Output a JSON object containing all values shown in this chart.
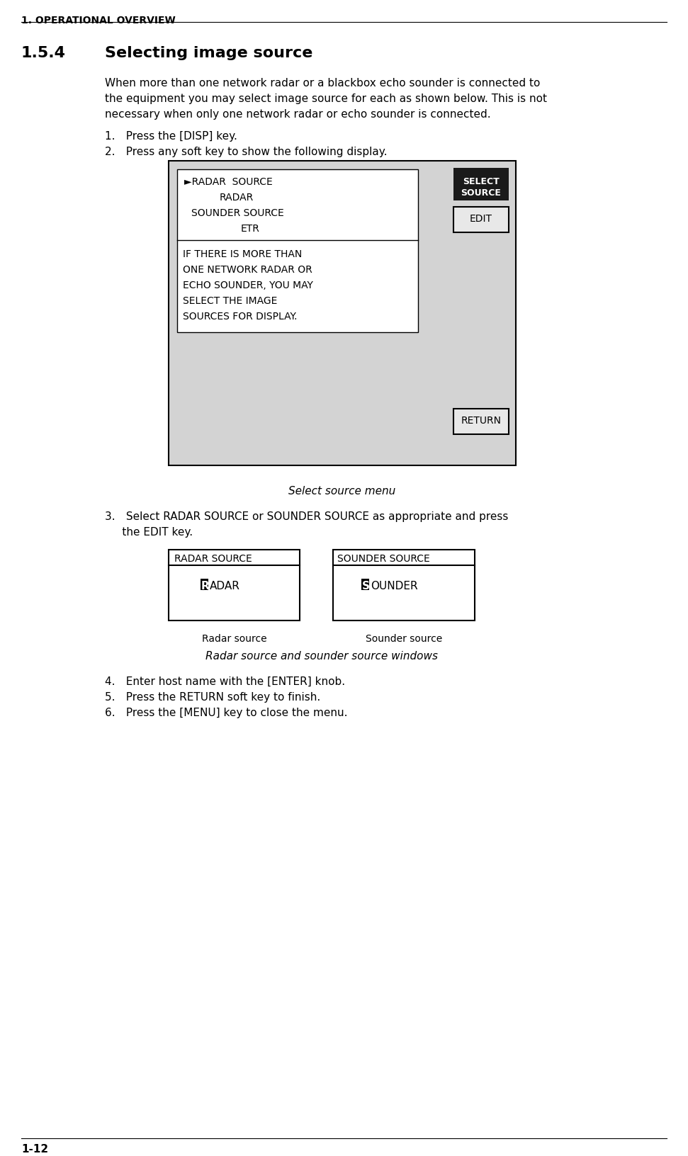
{
  "page_header": "1. OPERATIONAL OVERVIEW",
  "section_number": "1.5.4",
  "section_title": "Selecting image source",
  "paragraph": "When more than one network radar or a blackbox echo sounder is connected to the equipment you may select image source for each as shown below. This is not necessary when only one network radar or echo sounder is connected.",
  "steps_before": [
    "1. Press the [DISP] key.",
    "2. Press any soft key to show the following display."
  ],
  "menu_lines": [
    "►RADAR  SOURCE",
    "RADAR",
    "SOUNDER SOURCE",
    "ETR"
  ],
  "menu_info": "IF THERE IS MORE THAN\nONE NETWORK RADAR OR\nECHO SOUNDER, YOU MAY\nSELECT THE IMAGE\nSOURCES FOR DISPLAY.",
  "select_source_label": "SELECT\nSOURCE",
  "edit_label": "EDIT",
  "return_label": "RETURN",
  "figure_caption1": "Select source menu",
  "step3": "3. Select RADAR SOURCE or SOUNDER SOURCE as appropriate and press\n   the EDIT key.",
  "radar_source_title": "RADAR SOURCE",
  "sounder_source_title": "SOUNDER SOURCE",
  "radar_value": "RADAR",
  "sounder_value": "SOUNDER",
  "radar_source_label": "Radar source",
  "sounder_source_label": "Sounder source",
  "figure_caption2": "Radar source and sounder source windows",
  "steps_after": [
    "4. Enter host name with the [ENTER] knob.",
    "5. Press the RETURN soft key to finish.",
    "6. Press the [MENU] key to close the menu."
  ],
  "page_number": "1-12",
  "bg_color": "#ffffff",
  "menu_bg": "#d3d3d3",
  "menu_inner_bg": "#ffffff",
  "select_source_bg": "#1a1a1a",
  "select_source_fg": "#ffffff",
  "button_bg": "#e8e8e8",
  "button_border": "#000000"
}
